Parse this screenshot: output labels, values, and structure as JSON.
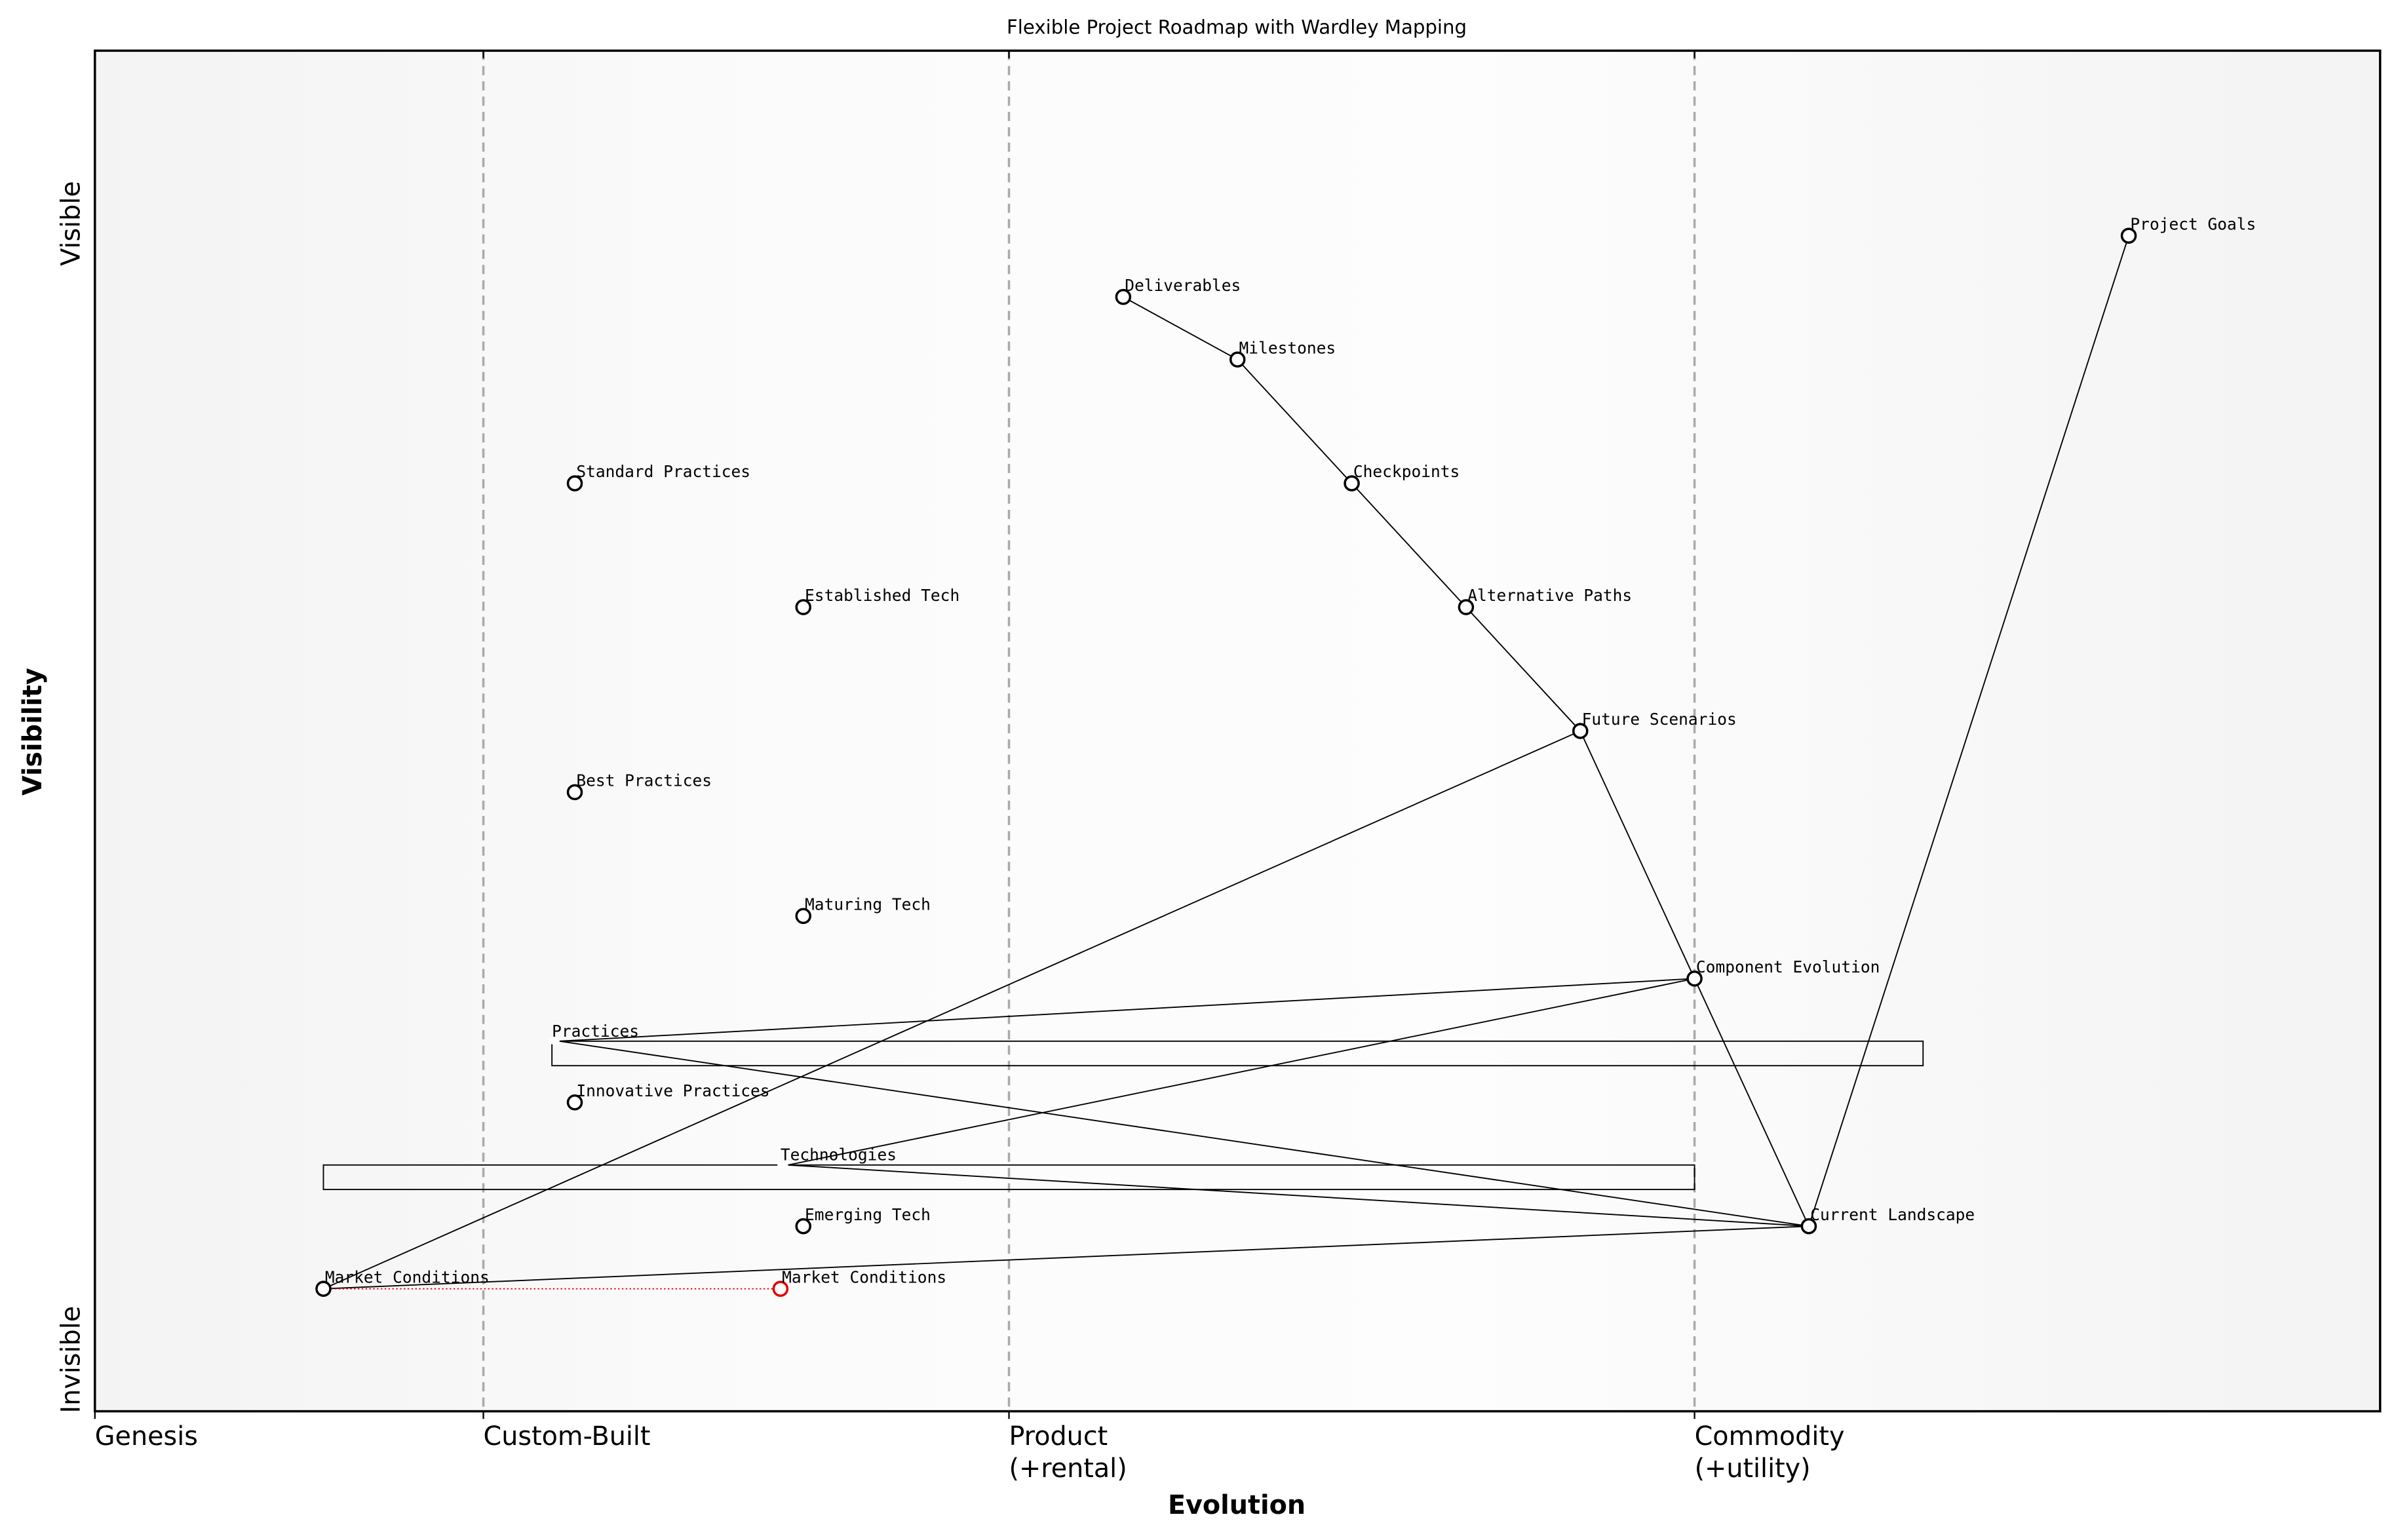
{
  "chart_data": {
    "type": "wardley",
    "title": "Flexible Project Roadmap with Wardley Mapping",
    "xlabel": "Evolution",
    "ylabel": "Visibility",
    "xlim": [
      0,
      1
    ],
    "ylim": [
      0,
      1
    ],
    "stages": [
      {
        "value": 0,
        "label": [
          "Genesis"
        ]
      },
      {
        "value": 0.17,
        "label": [
          "Custom-Built"
        ]
      },
      {
        "value": 0.4,
        "label": [
          "Product",
          "(+rental)"
        ]
      },
      {
        "value": 0.7,
        "label": [
          "Commodity",
          "(+utility)"
        ]
      }
    ],
    "yticks": [
      {
        "value": 0.873,
        "label": "Visible"
      },
      {
        "value": 0.038,
        "label": "Invisible"
      }
    ],
    "components": [
      {
        "name": "Project Goals",
        "x": 0.89,
        "y": 0.864
      },
      {
        "name": "Deliverables",
        "x": 0.45,
        "y": 0.819
      },
      {
        "name": "Milestones",
        "x": 0.5,
        "y": 0.773
      },
      {
        "name": "Checkpoints",
        "x": 0.55,
        "y": 0.682
      },
      {
        "name": "Alternative Paths",
        "x": 0.6,
        "y": 0.591
      },
      {
        "name": "Future Scenarios",
        "x": 0.65,
        "y": 0.5
      },
      {
        "name": "Component Evolution",
        "x": 0.7,
        "y": 0.318
      },
      {
        "name": "Current Landscape",
        "x": 0.75,
        "y": 0.136
      },
      {
        "name": "Standard Practices",
        "x": 0.21,
        "y": 0.682
      },
      {
        "name": "Established Tech",
        "x": 0.31,
        "y": 0.591
      },
      {
        "name": "Best Practices",
        "x": 0.21,
        "y": 0.455
      },
      {
        "name": "Maturing Tech",
        "x": 0.31,
        "y": 0.364
      },
      {
        "name": "Innovative Practices",
        "x": 0.21,
        "y": 0.227
      },
      {
        "name": "Emerging Tech",
        "x": 0.31,
        "y": 0.136
      },
      {
        "name": "Market Conditions",
        "x": 0.1,
        "y": 0.09
      }
    ],
    "groups": [
      {
        "name": "Practices",
        "x": [
          0.2,
          0.8
        ],
        "y": 0.272,
        "label_x": 0.2
      },
      {
        "name": "Technologies",
        "x": [
          0.1,
          0.7
        ],
        "y": 0.181,
        "label_x": 0.3
      }
    ],
    "evolutions": [
      {
        "name": "Market Conditions",
        "from_x": 0.1,
        "to_x": 0.3,
        "y": 0.09,
        "color": "#e00000"
      }
    ],
    "links": [
      [
        "Deliverables",
        "Milestones"
      ],
      [
        "Milestones",
        "Checkpoints"
      ],
      [
        "Checkpoints",
        "Alternative Paths"
      ],
      [
        "Alternative Paths",
        "Future Scenarios"
      ],
      [
        "Future Scenarios",
        "Component Evolution"
      ],
      [
        "Component Evolution",
        "Current Landscape"
      ],
      [
        "Current Landscape",
        "Project Goals"
      ],
      [
        "Future Scenarios",
        "Market Conditions"
      ],
      [
        "Market Conditions",
        "Current Landscape"
      ],
      [
        "Component Evolution",
        "Practices"
      ],
      [
        "Practices",
        "Current Landscape"
      ],
      [
        "Technologies",
        "Component Evolution"
      ],
      [
        "Technologies",
        "Current Landscape"
      ]
    ]
  }
}
